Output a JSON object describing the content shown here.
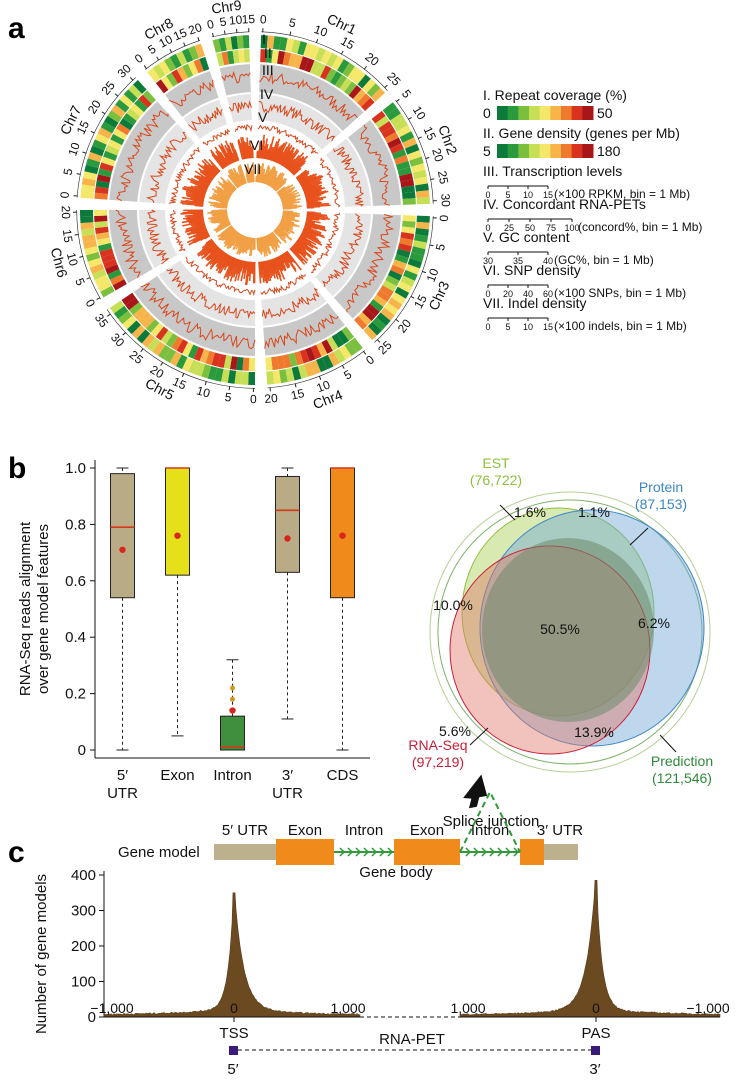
{
  "panel_letters": [
    "a",
    "b",
    "c"
  ],
  "circos": {
    "chromosomes": [
      {
        "name": "Chr1",
        "ticks": [
          "0",
          "5",
          "10",
          "15",
          "20",
          "25"
        ]
      },
      {
        "name": "Chr2",
        "ticks": [
          "5",
          "10",
          "15",
          "20",
          "25",
          "30"
        ]
      },
      {
        "name": "Chr3",
        "ticks": [
          "0",
          "5",
          "10",
          "15",
          "20",
          "25"
        ]
      },
      {
        "name": "Chr4",
        "ticks": [
          "0",
          "5",
          "10",
          "15",
          "20"
        ]
      },
      {
        "name": "Chr5",
        "ticks": [
          "0",
          "5",
          "10",
          "15",
          "20",
          "25",
          "30",
          "35"
        ]
      },
      {
        "name": "Chr6",
        "ticks": [
          "0",
          "5",
          "10",
          "15",
          "20"
        ]
      },
      {
        "name": "Chr7",
        "ticks": [
          "0",
          "5",
          "10",
          "15",
          "20",
          "25",
          "30"
        ]
      },
      {
        "name": "Chr8",
        "ticks": [
          "0",
          "5",
          "10",
          "15",
          "20"
        ]
      },
      {
        "name": "Chr9",
        "ticks": [
          "0",
          "5",
          "10",
          "15"
        ]
      }
    ],
    "track_numerals": [
      "I",
      "II",
      "III",
      "IV",
      "V",
      "VI",
      "VII"
    ],
    "colors": {
      "heat": [
        "#0b7a3a",
        "#2a9a3c",
        "#7bbf3f",
        "#c7de57",
        "#f4e76a",
        "#f7b44a",
        "#ef7a2e",
        "#d8331f",
        "#a8161a"
      ],
      "band": "#c8c8c8",
      "band_light": "#e4e4e4",
      "line": "#d9481c",
      "snp": "#e8521d",
      "indel": "#f2a047"
    },
    "legend": [
      {
        "title": "I. Repeat coverage (%)",
        "scale_min": "0",
        "scale_max": "50",
        "type": "heat"
      },
      {
        "title": "II. Gene density (genes per Mb)",
        "scale_min": "5",
        "scale_max": "180",
        "type": "heat"
      },
      {
        "title": "III. Transcription levels",
        "ticks": [
          "0",
          "5",
          "10",
          "15"
        ],
        "note": "(×100 RPKM, bin = 1 Mb)",
        "type": "axis"
      },
      {
        "title": "IV. Concordant RNA-PETs",
        "ticks": [
          "0",
          "25",
          "50",
          "75",
          "100"
        ],
        "note": "(concord%, bin = 1 Mb)",
        "type": "axis"
      },
      {
        "title": "V. GC content",
        "ticks": [
          "30",
          "35",
          "40"
        ],
        "note": "(GC%, bin = 1 Mb)",
        "type": "axis"
      },
      {
        "title": "VI. SNP density",
        "ticks": [
          "0",
          "20",
          "40",
          "60"
        ],
        "note": "(×100 SNPs, bin = 1 Mb)",
        "type": "axis"
      },
      {
        "title": "VII. Indel density",
        "ticks": [
          "0",
          "5",
          "10",
          "15"
        ],
        "note": "(×100 indels, bin = 1 Mb)",
        "type": "axis"
      }
    ]
  },
  "chart_data": [
    {
      "type": "box",
      "ylabel": "RNA-Seq reads alignment over gene model features",
      "ylim": [
        0,
        1.0
      ],
      "yticks": [
        "0",
        "0.2",
        "0.4",
        "0.6",
        "0.8",
        "1.0"
      ],
      "categories": [
        "5′ UTR",
        "Exon",
        "Intron",
        "3′ UTR",
        "CDS"
      ],
      "boxes": [
        {
          "label": "5′ UTR",
          "min": 0.0,
          "q1": 0.54,
          "median": 0.79,
          "q3": 0.98,
          "max": 1.0,
          "mean": 0.71,
          "color": "#b9ab86"
        },
        {
          "label": "Exon",
          "min": 0.05,
          "q1": 0.62,
          "median": 1.0,
          "q3": 1.0,
          "max": 1.0,
          "mean": 0.76,
          "color": "#e6e01a"
        },
        {
          "label": "Intron",
          "min": 0.0,
          "q1": 0.0,
          "median": 0.01,
          "q3": 0.12,
          "max": 0.32,
          "mean": 0.14,
          "color": "#3f8f3f",
          "outliers": [
            0.22,
            0.18
          ]
        },
        {
          "label": "3′ UTR",
          "min": 0.11,
          "q1": 0.63,
          "median": 0.85,
          "q3": 0.97,
          "max": 1.0,
          "mean": 0.75,
          "color": "#b9ab86"
        },
        {
          "label": "CDS",
          "min": 0.0,
          "q1": 0.54,
          "median": 1.0,
          "q3": 1.0,
          "max": 1.0,
          "mean": 0.76,
          "color": "#f08a1a"
        }
      ]
    },
    {
      "type": "venn",
      "sets": [
        {
          "name": "EST",
          "count": "(76,722)",
          "color": "#8fbf3c"
        },
        {
          "name": "Protein",
          "count": "(87,153)",
          "color": "#3d86c6"
        },
        {
          "name": "RNA-Seq",
          "count": "(97,219)",
          "color": "#c8203a"
        },
        {
          "name": "Prediction",
          "count": "(121,546)",
          "color": "#2e8a3a"
        }
      ],
      "regions": [
        "1.6%",
        "1.1%",
        "10.0%",
        "6.2%",
        "50.5%",
        "5.6%",
        "13.9%"
      ],
      "caption": "Splice junction"
    },
    {
      "type": "area",
      "ylabel": "Number of gene models",
      "ylim": [
        0,
        400
      ],
      "yticks": [
        "0",
        "100",
        "200",
        "300",
        "400"
      ],
      "segments": [
        {
          "anchor": "TSS",
          "xlim": [
            -1000,
            1000
          ],
          "xticks": [
            "−1,000",
            "0",
            "1,000"
          ],
          "peak": 350
        },
        {
          "anchor": "PAS",
          "xlim": [
            1000,
            -1000
          ],
          "xticks": [
            "1,000",
            "0",
            "−1,000"
          ],
          "peak": 385
        }
      ],
      "gene_model": {
        "label": "Gene model",
        "features": [
          "5′ UTR",
          "Exon",
          "Intron",
          "Exon",
          "Intron",
          "3′ UTR"
        ],
        "body_label": "Gene body"
      },
      "rna_pet": {
        "label": "RNA-PET",
        "left": "5′",
        "right": "3′",
        "left_anchor": "TSS",
        "right_anchor": "PAS"
      }
    }
  ]
}
